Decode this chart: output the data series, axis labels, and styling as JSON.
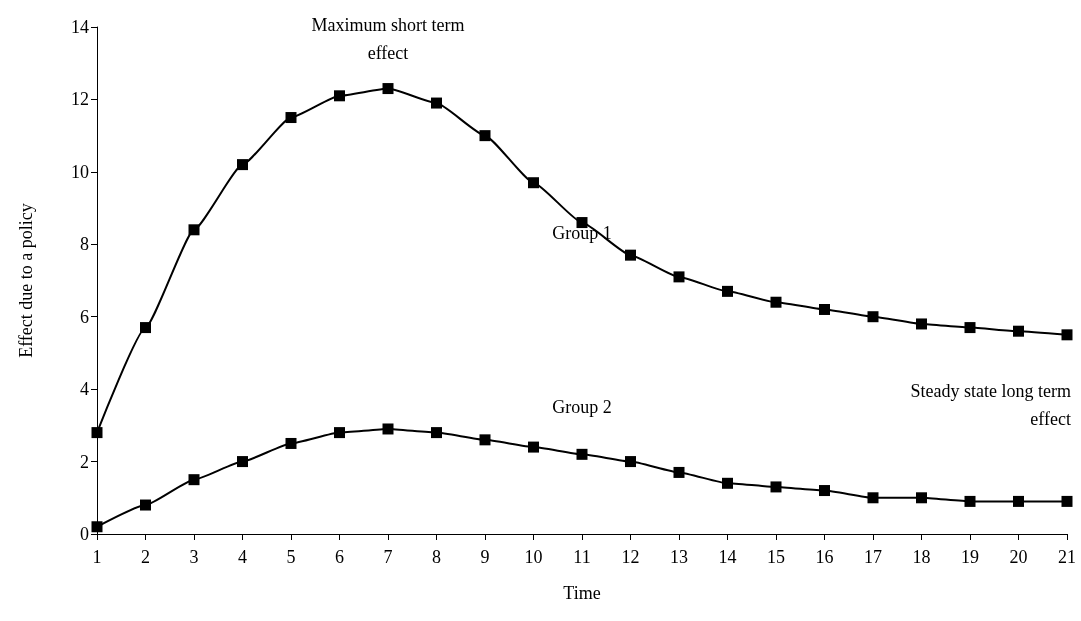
{
  "chart_data": {
    "type": "line",
    "xlabel": "Time",
    "ylabel": "Effect due to a policy",
    "categories": [
      "1",
      "2",
      "3",
      "4",
      "5",
      "6",
      "7",
      "8",
      "9",
      "10",
      "11",
      "12",
      "13",
      "14",
      "15",
      "16",
      "17",
      "18",
      "19",
      "20",
      "21"
    ],
    "series": [
      {
        "name": "Group 1",
        "color": "#000000",
        "values": [
          2.8,
          5.7,
          8.4,
          10.2,
          11.5,
          12.1,
          12.3,
          11.9,
          11.0,
          9.7,
          8.6,
          7.7,
          7.1,
          6.7,
          6.4,
          6.2,
          6.0,
          5.8,
          5.7,
          5.6,
          5.5
        ]
      },
      {
        "name": "Group 2",
        "color": "#000000",
        "values": [
          0.2,
          0.8,
          1.5,
          2.0,
          2.5,
          2.8,
          2.9,
          2.8,
          2.6,
          2.4,
          2.2,
          2.0,
          1.7,
          1.4,
          1.3,
          1.2,
          1.0,
          1.0,
          0.9,
          0.9,
          0.9
        ]
      }
    ],
    "annotations": [
      {
        "text": "Maximum short term\neffect",
        "x": "7",
        "y": 12.3
      },
      {
        "text": "Steady state long term\neffect",
        "x": "21",
        "y": 5.5
      }
    ],
    "ylim": [
      0,
      14
    ],
    "yticks": [
      0,
      2,
      4,
      6,
      8,
      10,
      12,
      14
    ],
    "grid": false,
    "legend": false,
    "marker": "square",
    "line_style": "solid"
  }
}
